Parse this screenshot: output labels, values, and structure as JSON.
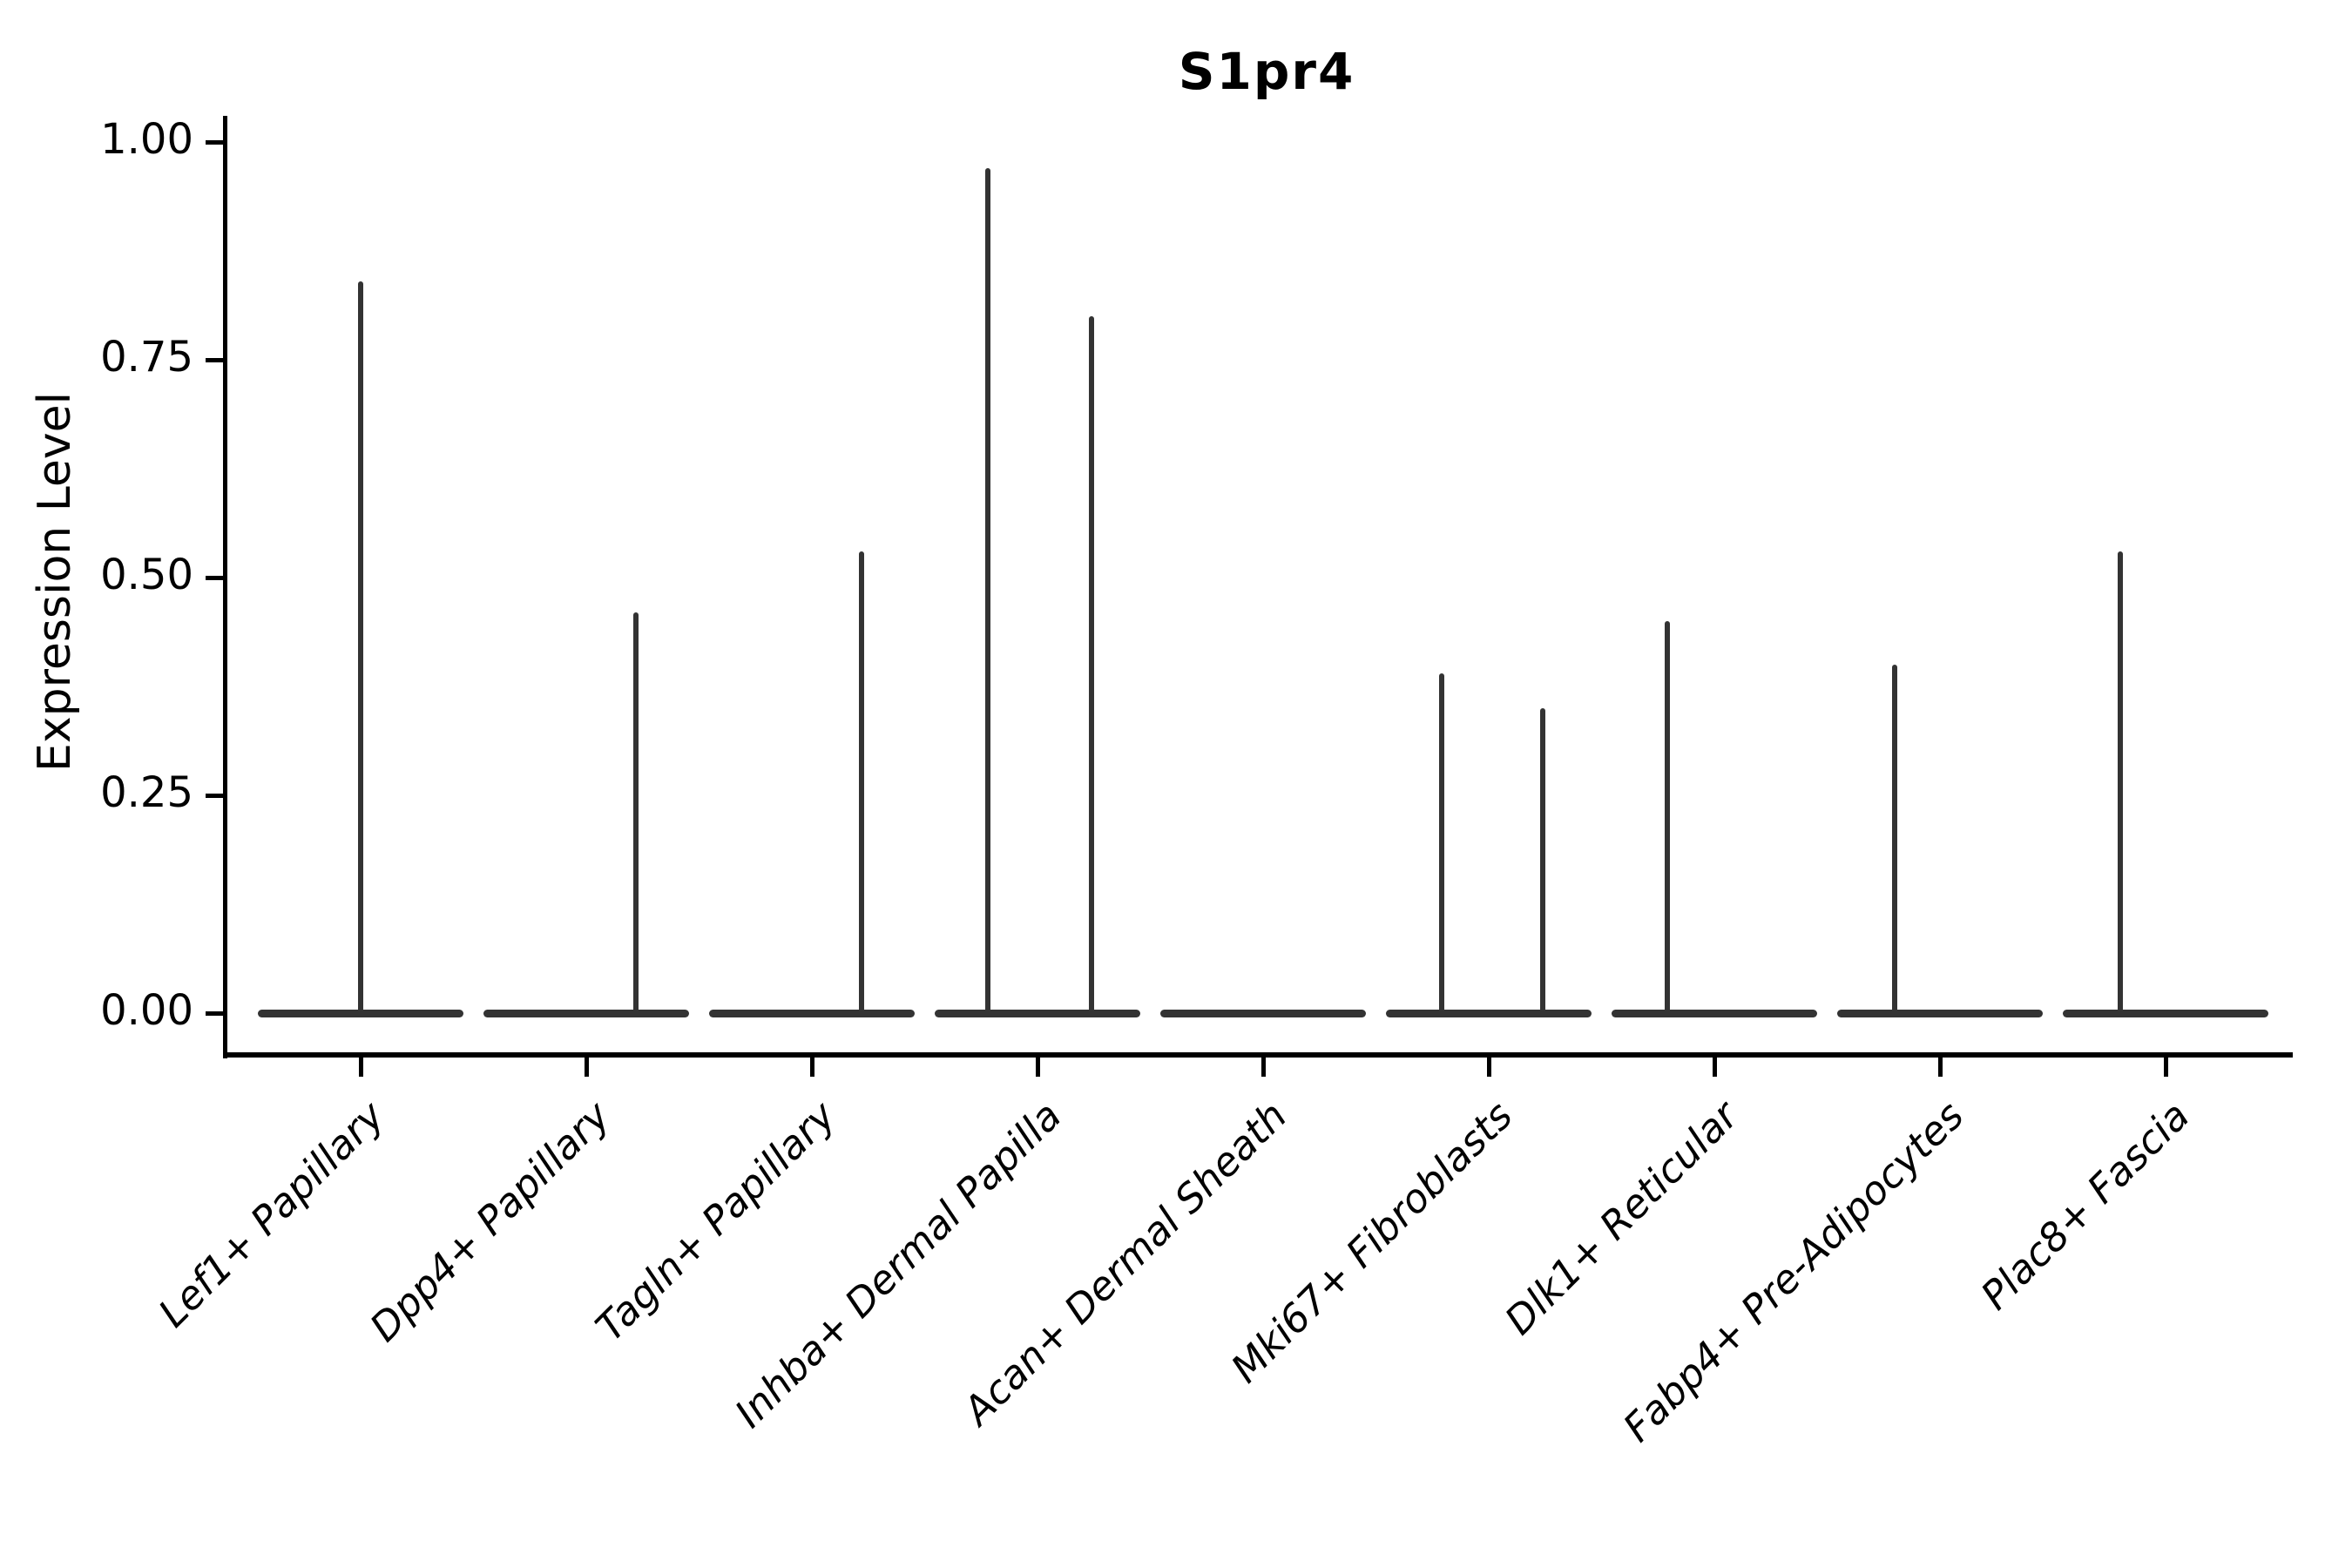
{
  "figure": {
    "title": "S1pr4",
    "y_axis": {
      "label": "Expression Level",
      "tick_labels": [
        "0.00",
        "0.25",
        "0.50",
        "0.75",
        "1.00"
      ]
    },
    "x_axis": {
      "categories": [
        "Lef1+ Papillary",
        "Dpp4+ Papillary",
        "Tagln+ Papillary",
        "Inhba+ Dermal Papilla",
        "Acan+ Dermal Sheath",
        "Mki67+ Fibroblasts",
        "Dlk1+ Reticular",
        "Fabp4+ Pre-Adipocytes",
        "Plac8+ Fascia"
      ]
    }
  },
  "colors": {
    "violin": "#333333",
    "axis": "#000000",
    "text": "#000000"
  },
  "chart_data": {
    "type": "violin",
    "title": "S1pr4",
    "xlabel": "",
    "ylabel": "Expression Level",
    "ylim": [
      0,
      1.05
    ],
    "y_ticks": [
      0.0,
      0.25,
      0.5,
      0.75,
      1.0
    ],
    "y_tick_labels": [
      "0.00",
      "0.25",
      "0.50",
      "0.75",
      "1.00"
    ],
    "grid": false,
    "legend": "none",
    "categories": [
      "Lef1+ Papillary",
      "Dpp4+ Papillary",
      "Tagln+ Papillary",
      "Inhba+ Dermal Papilla",
      "Acan+ Dermal Sheath",
      "Mki67+ Fibroblasts",
      "Dlk1+ Reticular",
      "Fabp4+ Pre-Adipocytes",
      "Plac8+ Fascia"
    ],
    "violins": [
      {
        "category": "Lef1+ Papillary",
        "bulk_at": 0.0,
        "spikes": [
          {
            "offset": 0.0,
            "max": 0.84
          }
        ]
      },
      {
        "category": "Dpp4+ Papillary",
        "bulk_at": 0.0,
        "spikes": [
          {
            "offset": 0.22,
            "max": 0.46
          }
        ]
      },
      {
        "category": "Tagln+ Papillary",
        "bulk_at": 0.0,
        "spikes": [
          {
            "offset": 0.22,
            "max": 0.53
          }
        ]
      },
      {
        "category": "Inhba+ Dermal Papilla",
        "bulk_at": 0.0,
        "spikes": [
          {
            "offset": -0.22,
            "max": 0.97
          },
          {
            "offset": 0.24,
            "max": 0.8
          }
        ]
      },
      {
        "category": "Acan+ Dermal Sheath",
        "bulk_at": 0.0,
        "spikes": []
      },
      {
        "category": "Mki67+ Fibroblasts",
        "bulk_at": 0.0,
        "spikes": [
          {
            "offset": -0.21,
            "max": 0.39
          },
          {
            "offset": 0.24,
            "max": 0.35
          }
        ]
      },
      {
        "category": "Dlk1+ Reticular",
        "bulk_at": 0.0,
        "spikes": [
          {
            "offset": -0.21,
            "max": 0.45
          }
        ]
      },
      {
        "category": "Fabp4+ Pre-Adipocytes",
        "bulk_at": 0.0,
        "spikes": [
          {
            "offset": -0.2,
            "max": 0.4
          }
        ]
      },
      {
        "category": "Plac8+ Fascia",
        "bulk_at": 0.0,
        "spikes": [
          {
            "offset": -0.2,
            "max": 0.53
          }
        ]
      }
    ],
    "notes": "All violins are collapsed flat at expression 0 with thin vertical spikes reaching each group's maximum expression value."
  }
}
